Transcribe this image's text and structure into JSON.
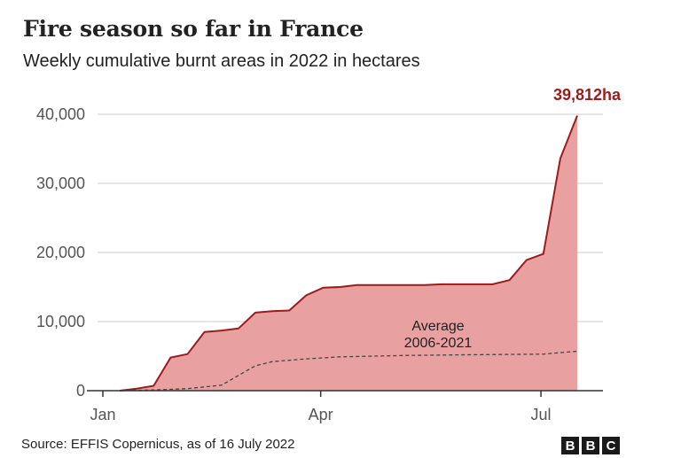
{
  "header": {
    "title": "Fire season so far in France",
    "subtitle": "Weekly cumulative burnt areas in 2022 in hectares"
  },
  "footer": {
    "source": "Source: EFFIS Copernicus, as of 16 July 2022",
    "logo_letters": [
      "B",
      "B",
      "C"
    ]
  },
  "colors": {
    "area_fill": "#e8a1a0",
    "line_2022": "#9b1c1c",
    "average_line": "#444444",
    "grid": "#cccccc",
    "axis": "#333333",
    "callout": "#9b1c1c"
  },
  "chart_data": {
    "type": "area",
    "x_unit": "day of year",
    "xlim": [
      1,
      197
    ],
    "ylim": [
      0,
      40000
    ],
    "y_ticks": [
      0,
      10000,
      20000,
      30000,
      40000
    ],
    "y_tick_labels": [
      "0",
      "10,000",
      "20,000",
      "30,000",
      "40,000"
    ],
    "x_ticks": [
      {
        "day": 1,
        "label": "Jan"
      },
      {
        "day": 91,
        "label": "Apr"
      },
      {
        "day": 182,
        "label": "Jul"
      }
    ],
    "grid": true,
    "series": [
      {
        "name": "",
        "style": "filled-area",
        "points": [
          [
            8,
            0
          ],
          [
            15,
            300
          ],
          [
            22,
            700
          ],
          [
            29,
            4800
          ],
          [
            36,
            5300
          ],
          [
            43,
            8500
          ],
          [
            50,
            8700
          ],
          [
            57,
            9000
          ],
          [
            64,
            11300
          ],
          [
            71,
            11500
          ],
          [
            78,
            11600
          ],
          [
            85,
            13800
          ],
          [
            92,
            14900
          ],
          [
            99,
            15000
          ],
          [
            106,
            15300
          ],
          [
            113,
            15300
          ],
          [
            120,
            15300
          ],
          [
            127,
            15300
          ],
          [
            134,
            15300
          ],
          [
            141,
            15400
          ],
          [
            148,
            15400
          ],
          [
            155,
            15400
          ],
          [
            162,
            15400
          ],
          [
            169,
            16000
          ],
          [
            176,
            18900
          ],
          [
            183,
            19800
          ],
          [
            190,
            33600
          ],
          [
            197,
            39812
          ]
        ],
        "end_label": "39,812ha"
      },
      {
        "name": "Average 2006-2021",
        "style": "dashed",
        "label_lines": [
          "Average",
          "2006-2021"
        ],
        "points": [
          [
            8,
            0
          ],
          [
            22,
            100
          ],
          [
            36,
            300
          ],
          [
            50,
            800
          ],
          [
            57,
            2200
          ],
          [
            64,
            3600
          ],
          [
            71,
            4200
          ],
          [
            85,
            4600
          ],
          [
            99,
            4900
          ],
          [
            127,
            5100
          ],
          [
            155,
            5200
          ],
          [
            183,
            5300
          ],
          [
            197,
            5700
          ]
        ]
      }
    ]
  }
}
